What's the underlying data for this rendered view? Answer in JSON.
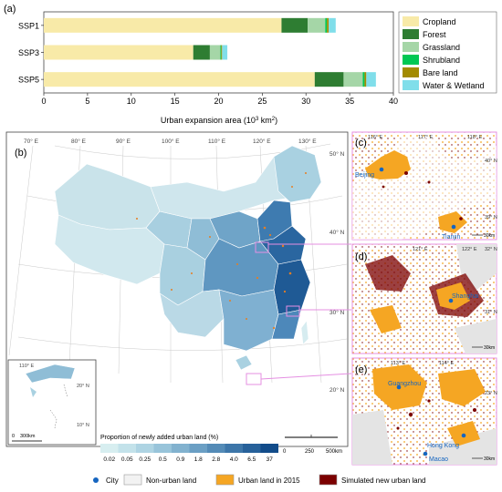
{
  "panel_a": {
    "label": "(a)",
    "xlabel": "Urban expansion area (10",
    "xlabel_sup": "3",
    "xlabel_tail": " km",
    "xlabel_sup2": "2",
    "xlabel_close": ")"
  },
  "chart_data": {
    "type": "bar",
    "orientation": "horizontal",
    "stacked": true,
    "categories": [
      "SSP1",
      "SSP3",
      "SSP5"
    ],
    "series": [
      {
        "name": "Cropland",
        "color": "#f8eaa8",
        "values": [
          27.2,
          17.1,
          31.0
        ]
      },
      {
        "name": "Forest",
        "color": "#2e7d32",
        "values": [
          3.0,
          1.9,
          3.3
        ]
      },
      {
        "name": "Grassland",
        "color": "#a5d6a7",
        "values": [
          2.0,
          1.2,
          2.2
        ]
      },
      {
        "name": "Shrubland",
        "color": "#00c853",
        "values": [
          0.2,
          0.1,
          0.2
        ]
      },
      {
        "name": "Bare land",
        "color": "#a38b00",
        "values": [
          0.2,
          0.1,
          0.2
        ]
      },
      {
        "name": "Water & Wetland",
        "color": "#80deea",
        "values": [
          0.8,
          0.6,
          1.1
        ]
      }
    ],
    "xlim": [
      0,
      40
    ],
    "xticks": [
      0,
      5,
      10,
      15,
      20,
      25,
      30,
      35,
      40
    ],
    "legend_position": "right"
  },
  "panel_b": {
    "label": "(b)",
    "lon_labels": [
      "70° E",
      "80° E",
      "90° E",
      "100° E",
      "110° E",
      "120° E",
      "130° E"
    ],
    "lat_labels": [
      "50° N",
      "40° N",
      "30° N",
      "20° N"
    ],
    "inset_lon": "110° E",
    "inset_lats": [
      "20° N",
      "10° N"
    ],
    "inset_scale": "300km",
    "inset_scale_zero": "0",
    "colorbar_title": "Proportion of newly added urban land (%)",
    "colorbar_ticks": [
      "0.02",
      "0.05",
      "0.25",
      "0.5",
      "0.9",
      "1.8",
      "2.8",
      "4.0",
      "6.5",
      "37"
    ],
    "colorbar_colors": [
      "#d7eef0",
      "#c3e2ea",
      "#aed4e3",
      "#98c4da",
      "#82b2cf",
      "#6b9fc4",
      "#548bb7",
      "#3d76a9",
      "#27619a",
      "#124c8a"
    ],
    "scale_labels": [
      "0",
      "250",
      "500km"
    ]
  },
  "panel_c": {
    "label": "(c)",
    "lons": [
      "116° E",
      "117° E",
      "118° E"
    ],
    "lats": [
      "40° N",
      "39° N"
    ],
    "cities": [
      "Beijing",
      "Tianjin"
    ],
    "scale": "30km"
  },
  "panel_d": {
    "label": "(d)",
    "lons": [
      "121° E",
      "122° E"
    ],
    "lats": [
      "32° N",
      "31° N"
    ],
    "cities": [
      "Shanghai"
    ],
    "scale": "30km"
  },
  "panel_e": {
    "label": "(e)",
    "lons": [
      "113° E",
      "114° E"
    ],
    "lats": [
      "23° N"
    ],
    "cities": [
      "Guangzhou",
      "Hong Kong",
      "Macao"
    ],
    "scale": "30km"
  },
  "legend_bottom": {
    "city": "City",
    "nonurban": "Non-urban land",
    "urban2015": "Urban land in 2015",
    "simulated": "Simulated new urban land",
    "colors": {
      "city": "#1565c0",
      "nonurban": "#f2f2f2",
      "urban2015": "#f5a623",
      "simulated": "#7b0000"
    }
  }
}
